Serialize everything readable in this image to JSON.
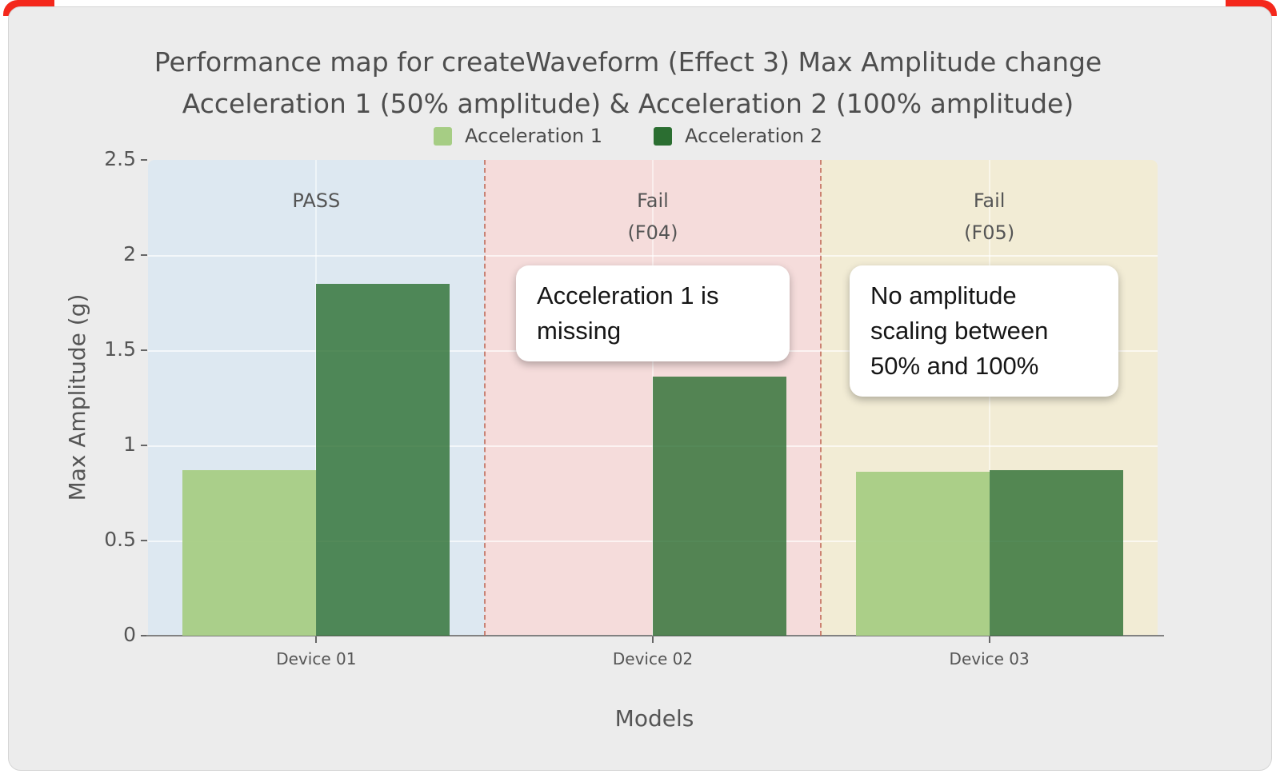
{
  "frame": {
    "corner_accent_color": "#f4281c",
    "card_background": "#ececec"
  },
  "chart_data": {
    "type": "bar",
    "title_line1": "Performance map for createWaveform (Effect 3) Max Amplitude change",
    "title_line2": "Acceleration 1 (50% amplitude) & Acceleration 2 (100% amplitude)",
    "xlabel": "Models",
    "ylabel": "Max Amplitude (g)",
    "ylim": [
      0,
      2.5
    ],
    "yticks": [
      0,
      0.5,
      1,
      1.5,
      2,
      2.5
    ],
    "ytick_labels": [
      "0",
      "0.5",
      "1",
      "1.5",
      "2",
      "2.5"
    ],
    "categories": [
      "Device 01",
      "Device 02",
      "Device 03"
    ],
    "series": [
      {
        "name": "Acceleration 1",
        "color": "#a6cd84",
        "values": [
          0.87,
          null,
          0.86
        ]
      },
      {
        "name": "Acceleration 2",
        "color": "#2b6e31",
        "values": [
          1.85,
          1.36,
          0.87
        ]
      }
    ],
    "regions": [
      {
        "label_lines": [
          "PASS"
        ],
        "color": "#dde8f1",
        "category": "Device 01"
      },
      {
        "label_lines": [
          "Fail",
          "(F04)"
        ],
        "color": "#f5dcdb",
        "category": "Device 02"
      },
      {
        "label_lines": [
          "Fail",
          "(F05)"
        ],
        "color": "#f2ecd5",
        "category": "Device 03"
      }
    ],
    "separator_color": "#bf6350",
    "annotations": [
      {
        "text": "Acceleration 1 is missing"
      },
      {
        "text": "No amplitude scaling between 50% and 100%"
      }
    ],
    "legend_position": "top",
    "grid": true
  }
}
